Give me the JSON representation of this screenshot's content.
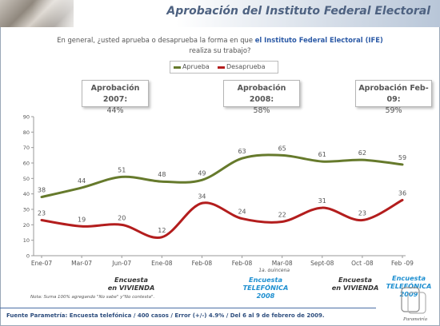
{
  "header": {
    "title": "Aprobación del Instituto Federal Electoral"
  },
  "question": {
    "prefix": "En general, ¿usted aprueba o desaprueba la forma en que ",
    "highlight": "el Instituto Federal Electoral (IFE)",
    "suffix": "realiza su trabajo?"
  },
  "colors": {
    "aprueba": "#667a2c",
    "desaprueba": "#b31d1d",
    "title": "#4e6281",
    "survey_phone": "#1e8fd0",
    "survey_home": "#333333"
  },
  "callouts": [
    {
      "title": "Aprobación 2007:",
      "value": "44%"
    },
    {
      "title": "Aprobación 2008:",
      "value": "58%"
    },
    {
      "title": "Aprobación Feb-09:",
      "value": "59%"
    }
  ],
  "chart_data": {
    "type": "line",
    "categories": [
      "Ene-07",
      "Mar-07",
      "Jun-07",
      "Ene-08",
      "Feb-08",
      "Feb-08",
      "Mar-08",
      "Sept-08",
      "Oct -08",
      "Feb -09"
    ],
    "category_sublabels": [
      "",
      "",
      "",
      "",
      "",
      "",
      "1a. quincena",
      "",
      "",
      ""
    ],
    "series": [
      {
        "name": "Aprueba",
        "color": "#667a2c",
        "values": [
          38,
          44,
          51,
          48,
          49,
          63,
          65,
          61,
          62,
          59
        ]
      },
      {
        "name": "Desaprueba",
        "color": "#b31d1d",
        "values": [
          23,
          19,
          20,
          12,
          34,
          24,
          22,
          31,
          23,
          36
        ]
      }
    ],
    "ylim": [
      0,
      90
    ],
    "yticks": [
      0,
      10,
      20,
      30,
      40,
      50,
      60,
      70,
      80,
      90
    ],
    "grid": false,
    "legend": "top-center"
  },
  "surveys": [
    {
      "line1": "Encuesta",
      "line2": "en VIVIENDA",
      "line3": "",
      "kind": "home"
    },
    {
      "line1": "Encuesta",
      "line2": "TELEFÓNICA",
      "line3": "2008",
      "kind": "phone"
    },
    {
      "line1": "Encuesta",
      "line2": "en VIVIENDA",
      "line3": "",
      "kind": "home"
    },
    {
      "line1": "Encuesta",
      "line2": "TELEFÓNICA",
      "line3": "2009",
      "kind": "phone"
    }
  ],
  "note": "Nota: Suma 100% agregando \"No sabe\" y\"No contesta\".",
  "source": "Fuente Parametría: Encuesta telefónica / 400 casos / Error (+/-) 4.9% / Del 6 al 9 de febrero de 2009.",
  "logo": {
    "name": "Parametría"
  }
}
